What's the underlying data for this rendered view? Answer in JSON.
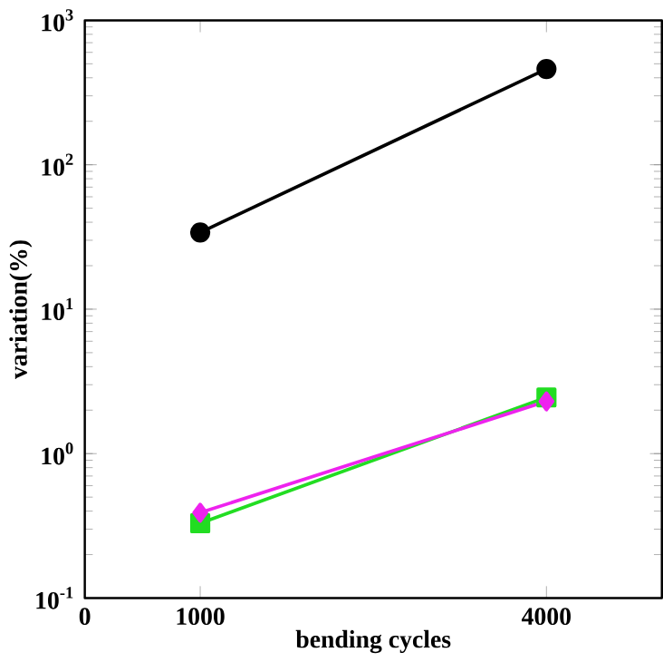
{
  "chart_data": {
    "type": "line",
    "xlabel": "bending cycles",
    "ylabel": "variation(%)",
    "log": "y",
    "x": [
      1000,
      4000
    ],
    "xlim": [
      0,
      5000
    ],
    "xticks": [
      0,
      1000,
      4000
    ],
    "ylim": [
      0.1,
      1000
    ],
    "yticks": [
      {
        "value": 0.1,
        "label": "10$^{-1}$"
      },
      {
        "value": 1,
        "label": "10$^{0}$"
      },
      {
        "value": 10,
        "label": "10$^{1}$"
      },
      {
        "value": 100,
        "label": "10$^{2}$"
      },
      {
        "value": 1000,
        "label": "10$^{3}$"
      }
    ],
    "series": [
      {
        "color": "#000000",
        "marker": "circle",
        "values": [
          34,
          460
        ]
      },
      {
        "color": "#22dd22",
        "marker": "square",
        "values": [
          0.33,
          2.45
        ]
      },
      {
        "color": "#ee22ee",
        "marker": "diamond",
        "values": [
          0.39,
          2.3
        ]
      }
    ]
  }
}
